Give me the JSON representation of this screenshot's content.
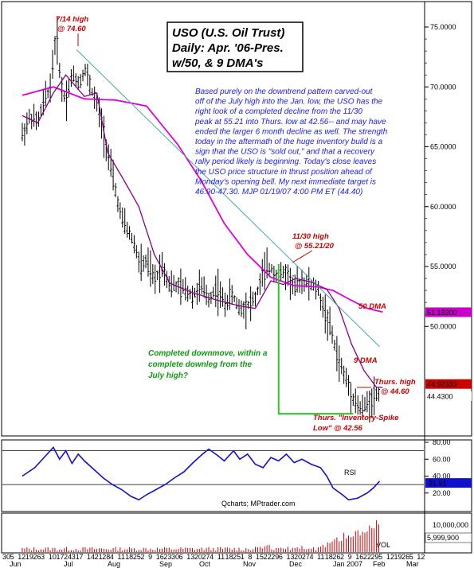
{
  "chart_data": [
    {
      "type": "ohlc",
      "title_lines": [
        "USO (U.S. Oil Trust)",
        "Daily: Apr. '06-Pres.",
        "w/50, & 9 DMA's"
      ],
      "y_ticks": [
        "75.0000",
        "70.0000",
        "65.0000",
        "60.0000",
        "55.0000",
        "50.0000"
      ],
      "ylim": [
        41,
        77
      ],
      "price_flags": [
        {
          "value": "51.18300",
          "color": "#cc00cc",
          "text_color": "#ffffff"
        },
        {
          "value": "44.92333",
          "color": "#cc0000",
          "text_color": "#ffffff"
        },
        {
          "value": "44.4300",
          "color": "#000000",
          "text_color": "#ffffff"
        }
      ],
      "series": [
        {
          "name": "50 DMA",
          "color": "#dd00dd",
          "points": [
            [
              0,
              69.3
            ],
            [
              20,
              70.0
            ],
            [
              40,
              69.0
            ],
            [
              60,
              68.9
            ],
            [
              80,
              68.4
            ],
            [
              100,
              65.2
            ],
            [
              115,
              62.2
            ],
            [
              130,
              58.6
            ],
            [
              145,
              56.0
            ],
            [
              160,
              54.1
            ],
            [
              175,
              53.4
            ],
            [
              190,
              53.3
            ],
            [
              200,
              53.0
            ],
            [
              210,
              52.3
            ],
            [
              222,
              51.5
            ],
            [
              232,
              51.2
            ]
          ]
        },
        {
          "name": "9 DMA",
          "color": "#880088",
          "points": [
            [
              0,
              67.6
            ],
            [
              10,
              67.0
            ],
            [
              20,
              69.5
            ],
            [
              28,
              71.0
            ],
            [
              40,
              69.2
            ],
            [
              48,
              69.5
            ],
            [
              55,
              64.5
            ],
            [
              65,
              62.3
            ],
            [
              75,
              60.0
            ],
            [
              85,
              56.0
            ],
            [
              95,
              53.6
            ],
            [
              110,
              52.8
            ],
            [
              125,
              52.2
            ],
            [
              140,
              51.7
            ],
            [
              150,
              51.5
            ],
            [
              160,
              53.8
            ],
            [
              168,
              53.5
            ],
            [
              176,
              54.0
            ],
            [
              186,
              53.7
            ],
            [
              196,
              53.1
            ],
            [
              204,
              51.5
            ],
            [
              212,
              48.5
            ],
            [
              220,
              46.3
            ],
            [
              228,
              44.9
            ],
            [
              232,
              44.9
            ]
          ]
        }
      ],
      "trendline": {
        "from": [
          35,
          73.1
        ],
        "to": [
          230,
          48.3
        ],
        "color": "#44aaaa"
      },
      "ohlc_path": [
        [
          0,
          66.0
        ],
        [
          5,
          67.5
        ],
        [
          10,
          67.0
        ],
        [
          14,
          68.8
        ],
        [
          18,
          70.0
        ],
        [
          20,
          72.5
        ],
        [
          22,
          74.6
        ],
        [
          25,
          70.0
        ],
        [
          28,
          68.9
        ],
        [
          32,
          71.0
        ],
        [
          37,
          70.3
        ],
        [
          40,
          71.6
        ],
        [
          44,
          70.0
        ],
        [
          48,
          68.5
        ],
        [
          52,
          66.5
        ],
        [
          56,
          63.8
        ],
        [
          60,
          61.3
        ],
        [
          64,
          58.9
        ],
        [
          68,
          58.0
        ],
        [
          72,
          56.9
        ],
        [
          76,
          55.0
        ],
        [
          80,
          55.4
        ],
        [
          85,
          53.8
        ],
        [
          90,
          55.1
        ],
        [
          95,
          53.5
        ],
        [
          100,
          53.3
        ],
        [
          105,
          53.0
        ],
        [
          110,
          52.6
        ],
        [
          115,
          53.3
        ],
        [
          120,
          52.3
        ],
        [
          125,
          53.2
        ],
        [
          130,
          51.9
        ],
        [
          135,
          52.6
        ],
        [
          140,
          51.5
        ],
        [
          145,
          51.8
        ],
        [
          150,
          52.3
        ],
        [
          155,
          54.5
        ],
        [
          160,
          54.9
        ],
        [
          165,
          54.2
        ],
        [
          170,
          54.5
        ],
        [
          175,
          53.2
        ],
        [
          180,
          53.8
        ],
        [
          185,
          53.5
        ],
        [
          190,
          53.1
        ],
        [
          194,
          51.4
        ],
        [
          198,
          50.0
        ],
        [
          202,
          47.9
        ],
        [
          206,
          46.3
        ],
        [
          210,
          45.1
        ],
        [
          214,
          43.8
        ],
        [
          218,
          43.0
        ],
        [
          222,
          43.5
        ],
        [
          226,
          44.2
        ],
        [
          230,
          44.4
        ]
      ],
      "annotations": [
        {
          "text": "7/14 high",
          "color": "red",
          "at": "jul-high-label-1"
        },
        {
          "text": "@ 74.60",
          "color": "red",
          "at": "jul-high-label-2"
        },
        {
          "text": "11/30 high",
          "color": "red"
        },
        {
          "text": "@ 55.21/20",
          "color": "red"
        },
        {
          "text": "50 DMA",
          "color": "magenta"
        },
        {
          "text": "9 DMA",
          "color": "darkred"
        },
        {
          "text": "Thurs. high",
          "color": "red"
        },
        {
          "text": "@ 44.60",
          "color": "red"
        },
        {
          "text": "Thurs. \"Inventory-Spike",
          "color": "red"
        },
        {
          "text": "Low\" @ 42.56",
          "color": "red"
        }
      ],
      "commentary_lines": [
        "Based purely on the downtrend pattern carved-out",
        "off of the July high into the Jan. low, the USO has the",
        "right look of a completed decline from the 11/30",
        "peak at 55.21 into Thurs. low at 42.56-- and may have",
        "ended the larger 6 month decline as well.  The strength",
        "today in the aftermath of the huge inventory build is a",
        "sign that the USO is \"sold out,\" and that a recovery",
        "rally period likely is beginning. Today's close leaves",
        "the USO price structure in thrust position ahead of",
        "Monday's opening bell. My next immediate target is",
        "46.90-47.30.   MJP 01/19/07 4:00 PM ET (44.40)"
      ],
      "green_note_lines": [
        "Completed downmove, within a",
        "complete downleg from the",
        "July high?"
      ]
    },
    {
      "type": "line",
      "name": "RSI",
      "ylim": [
        0,
        80
      ],
      "y_ticks": [
        "80.00",
        "60.00",
        "40.00",
        "20.00"
      ],
      "reference_lines": [
        70,
        30
      ],
      "current_value": "31.91",
      "label": "RSI",
      "watermark": "Qcharts; MPtrader.com",
      "values": [
        [
          0,
          40
        ],
        [
          8,
          50
        ],
        [
          14,
          62
        ],
        [
          20,
          74
        ],
        [
          24,
          60
        ],
        [
          28,
          70
        ],
        [
          32,
          55
        ],
        [
          36,
          66
        ],
        [
          40,
          58
        ],
        [
          46,
          48
        ],
        [
          52,
          38
        ],
        [
          58,
          30
        ],
        [
          64,
          24
        ],
        [
          70,
          16
        ],
        [
          75,
          12
        ],
        [
          80,
          18
        ],
        [
          86,
          24
        ],
        [
          92,
          30
        ],
        [
          98,
          38
        ],
        [
          104,
          45
        ],
        [
          110,
          56
        ],
        [
          116,
          66
        ],
        [
          120,
          72
        ],
        [
          126,
          64
        ],
        [
          130,
          58
        ],
        [
          136,
          70
        ],
        [
          140,
          60
        ],
        [
          145,
          66
        ],
        [
          150,
          54
        ],
        [
          155,
          50
        ],
        [
          160,
          62
        ],
        [
          165,
          58
        ],
        [
          170,
          66
        ],
        [
          175,
          56
        ],
        [
          180,
          60
        ],
        [
          186,
          54
        ],
        [
          192,
          50
        ],
        [
          196,
          40
        ],
        [
          200,
          26
        ],
        [
          206,
          18
        ],
        [
          210,
          12
        ],
        [
          216,
          14
        ],
        [
          222,
          20
        ],
        [
          226,
          26
        ],
        [
          230,
          34
        ]
      ]
    },
    {
      "type": "bar",
      "name": "VOL",
      "y_ticks": [
        "10,000,000",
        "5,999,900"
      ],
      "label": "VOL",
      "note": "volume bars increasing sharply into Jan 2007",
      "x_date_labels": [
        "30",
        "5",
        "12",
        "19",
        "26",
        "3",
        "10",
        "17",
        "24",
        "31",
        "7",
        "14",
        "21",
        "28",
        "4",
        "11",
        "18",
        "25",
        "2",
        "9",
        "16",
        "23",
        "30",
        "6",
        "13",
        "20",
        "27",
        "4",
        "11",
        "18",
        "25",
        "1",
        "8",
        "15",
        "22",
        "29",
        "6",
        "13",
        "20",
        "27",
        "4",
        "11",
        "18",
        "26",
        "2",
        "9",
        "16",
        "22",
        "29",
        "5",
        "12",
        "19",
        "26",
        "5",
        "12"
      ],
      "x_month_labels": [
        "Jun",
        "Jul",
        "Aug",
        "Sep",
        "Oct",
        "Nov",
        "Dec",
        "Jan 2007",
        "Feb",
        "Mar"
      ]
    }
  ]
}
